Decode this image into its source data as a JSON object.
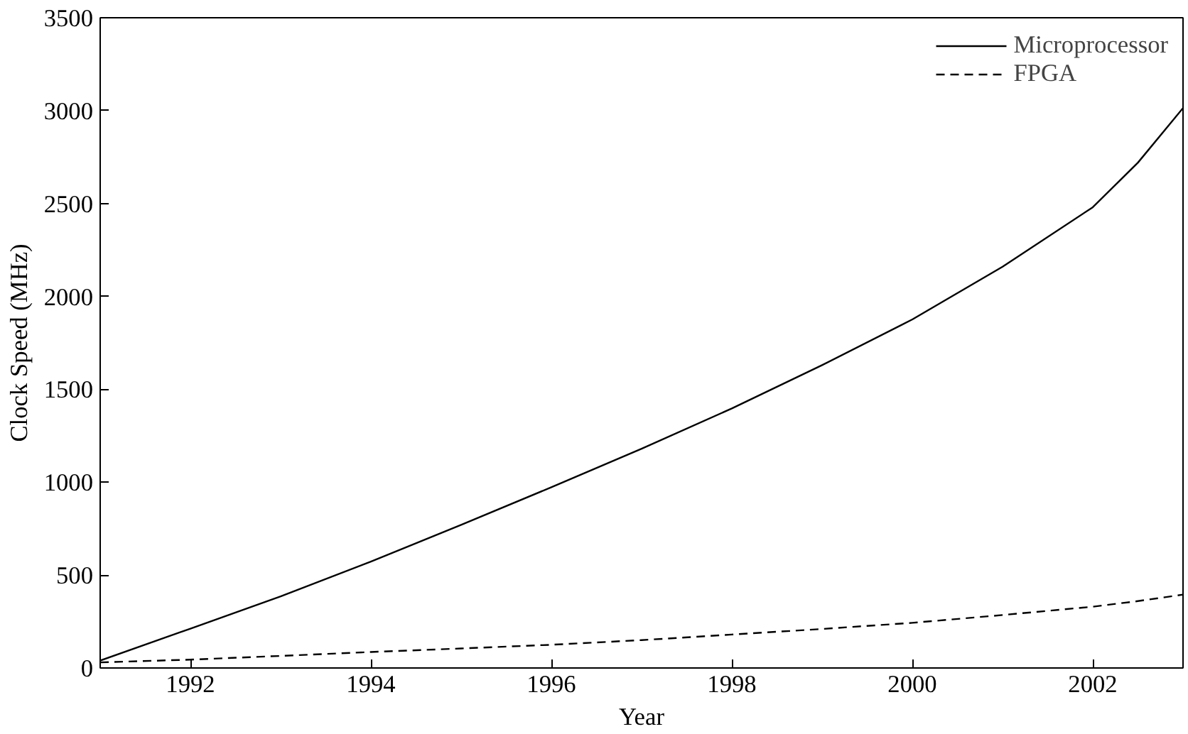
{
  "chart_data": {
    "type": "line",
    "xlabel": "Year",
    "ylabel": "Clock Speed (MHz)",
    "x": [
      1991,
      1992,
      1993,
      1994,
      1995,
      1996,
      1997,
      1998,
      1999,
      2000,
      2001,
      2002,
      2002.5,
      2003
    ],
    "series": [
      {
        "name": "Microprocessor",
        "color": "#000000",
        "line_style": "solid",
        "values": [
          40,
          212,
          385,
          573,
          770,
          973,
          1180,
          1397,
          1630,
          1876,
          2160,
          2480,
          2720,
          3014
        ]
      },
      {
        "name": "FPGA",
        "color": "#000000",
        "line_style": "dashed",
        "values": [
          30,
          45,
          65,
          86,
          105,
          125,
          150,
          180,
          210,
          243,
          285,
          330,
          360,
          395
        ]
      }
    ],
    "xlim": [
      1991,
      2003
    ],
    "xticks": [
      1992,
      1994,
      1996,
      1998,
      2000,
      2002
    ],
    "ylim": [
      0,
      3500
    ],
    "yticks": [
      0,
      500,
      1000,
      1500,
      2000,
      2500,
      3000,
      3500
    ],
    "grid": false,
    "legend": "top right",
    "marker": "none"
  }
}
